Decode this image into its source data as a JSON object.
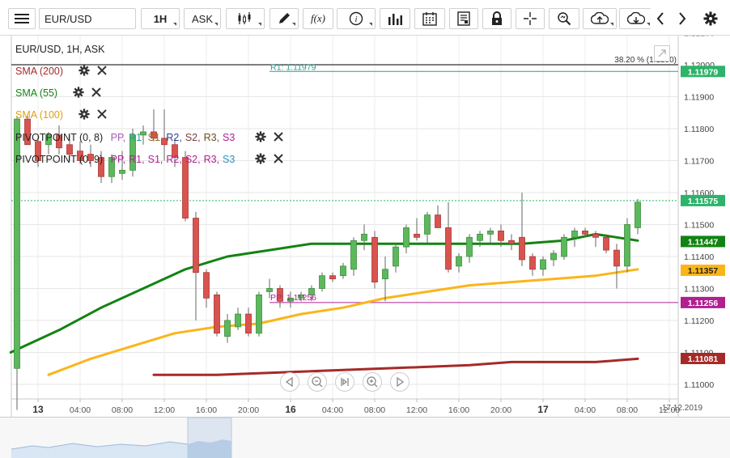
{
  "toolbar": {
    "symbol": "EUR/USD",
    "interval": "1H",
    "price_type": "ASK",
    "icons": [
      "menu-icon",
      "candle-icon",
      "draw-icon",
      "function-icon",
      "info-icon",
      "bars-icon",
      "calendar-icon",
      "notes-icon",
      "lock-icon",
      "crosshair-icon",
      "zoom-icon",
      "upload-icon",
      "download-icon",
      "chevron-left-icon",
      "chevron-right-icon",
      "gear-icon"
    ],
    "function_label": "f(x)"
  },
  "chart_title": "EUR/USD, 1H, ASK",
  "legend": {
    "sma200": {
      "label": "SMA (200)",
      "color": "#a52a2a"
    },
    "sma55": {
      "label": "SMA (55)",
      "color": "#128312"
    },
    "sma100": {
      "label": "SMA (100)",
      "color": "#fbb519"
    },
    "pivot1": {
      "label": "PIVOTPOINT (0, 8)",
      "parts": [
        {
          "t": "PP",
          "c": "#a35eb2"
        },
        {
          "t": "R1",
          "c": "#2a9d8f"
        },
        {
          "t": "S1",
          "c": "#8b6f1e"
        },
        {
          "t": "R2",
          "c": "#2c3e90"
        },
        {
          "t": "S2",
          "c": "#7a3d3d"
        },
        {
          "t": "R3",
          "c": "#6b4b1e"
        },
        {
          "t": "S3",
          "c": "#b02090"
        }
      ]
    },
    "pivot2": {
      "label": "PIVOTPOINT (0, 9)",
      "parts": [
        {
          "t": "PP",
          "c": "#b02090"
        },
        {
          "t": "R1",
          "c": "#b02090"
        },
        {
          "t": "S1",
          "c": "#b02090"
        },
        {
          "t": "R2",
          "c": "#b02090"
        },
        {
          "t": "S2",
          "c": "#b02090"
        },
        {
          "t": "R3",
          "c": "#b02090"
        },
        {
          "t": "S3",
          "c": "#2a8fbf"
        }
      ]
    }
  },
  "annotations": {
    "fib_label": "38.20 % (1.1200)",
    "r1_label": "R1: 1.11979",
    "pp_label": "PP: 1.11256"
  },
  "price_tags": [
    {
      "value": "1.11979",
      "y": 1.11979,
      "color": "#2db36a",
      "text_color": "#ffffff"
    },
    {
      "value": "1.11575",
      "y": 1.11575,
      "color": "#2db36a",
      "text_color": "#ffffff"
    },
    {
      "value": "1.11447",
      "y": 1.11447,
      "color": "#128312",
      "text_color": "#ffffff"
    },
    {
      "value": "1.11357",
      "y": 1.11357,
      "color": "#fbb519",
      "text_color": "#222222"
    },
    {
      "value": "1.11256",
      "y": 1.11256,
      "color": "#b02090",
      "text_color": "#ffffff"
    },
    {
      "value": "1.11081",
      "y": 1.11081,
      "color": "#a52a2a",
      "text_color": "#ffffff"
    }
  ],
  "date_label": "17.12.2019",
  "chart_data": {
    "type": "candlestick",
    "ylim": [
      1.1107,
      1.1213
    ],
    "yticks": [
      1.11,
      1.111,
      1.112,
      1.113,
      1.114,
      1.115,
      1.116,
      1.117,
      1.118,
      1.119,
      1.12
    ],
    "ytick_labels": [
      "1.11000",
      "1.11100",
      "1.11200",
      "1.11300",
      "1.11400",
      "1.11500",
      "1.11600",
      "1.11700",
      "1.11800",
      "1.11900",
      "1.12000"
    ],
    "top_cut_tick_label": "1.12100",
    "xticks": [
      {
        "i": 2,
        "label": "13",
        "bold": true
      },
      {
        "i": 6,
        "label": "04:00"
      },
      {
        "i": 10,
        "label": "08:00"
      },
      {
        "i": 14,
        "label": "12:00"
      },
      {
        "i": 18,
        "label": "16:00"
      },
      {
        "i": 22,
        "label": "20:00"
      },
      {
        "i": 26,
        "label": "16",
        "bold": true
      },
      {
        "i": 30,
        "label": "04:00"
      },
      {
        "i": 34,
        "label": "08:00"
      },
      {
        "i": 38,
        "label": "12:00"
      },
      {
        "i": 42,
        "label": "16:00"
      },
      {
        "i": 46,
        "label": "20:00"
      },
      {
        "i": 50,
        "label": "17",
        "bold": true
      },
      {
        "i": 54,
        "label": "04:00"
      },
      {
        "i": 58,
        "label": "08:00"
      },
      {
        "i": 62,
        "label": "12:00"
      }
    ],
    "candles": [
      [
        1.1105,
        1.1184,
        1.1092,
        1.1183
      ],
      [
        1.1183,
        1.1184,
        1.1175,
        1.1175
      ],
      [
        1.1176,
        1.1178,
        1.1168,
        1.117
      ],
      [
        1.1175,
        1.1179,
        1.1172,
        1.1178
      ],
      [
        1.1178,
        1.1181,
        1.1172,
        1.1174
      ],
      [
        1.1175,
        1.1178,
        1.117,
        1.1172
      ],
      [
        1.1173,
        1.1176,
        1.1169,
        1.117
      ],
      [
        1.1172,
        1.1175,
        1.1168,
        1.117
      ],
      [
        1.1171,
        1.1173,
        1.1163,
        1.1165
      ],
      [
        1.1165,
        1.1172,
        1.1163,
        1.1171
      ],
      [
        1.1166,
        1.1173,
        1.1164,
        1.1167
      ],
      [
        1.1167,
        1.118,
        1.1165,
        1.1178
      ],
      [
        1.1178,
        1.1181,
        1.1175,
        1.1179
      ],
      [
        1.1179,
        1.1186,
        1.1176,
        1.1177
      ],
      [
        1.1177,
        1.1186,
        1.117,
        1.1175
      ],
      [
        1.1175,
        1.1177,
        1.1168,
        1.1171
      ],
      [
        1.1171,
        1.1173,
        1.1151,
        1.1152
      ],
      [
        1.1152,
        1.1154,
        1.112,
        1.1135
      ],
      [
        1.1135,
        1.1136,
        1.1124,
        1.1127
      ],
      [
        1.1128,
        1.1129,
        1.1115,
        1.1116
      ],
      [
        1.1115,
        1.1122,
        1.1113,
        1.112
      ],
      [
        1.1118,
        1.1124,
        1.1117,
        1.1122
      ],
      [
        1.1122,
        1.1124,
        1.1115,
        1.1116
      ],
      [
        1.1116,
        1.1129,
        1.1115,
        1.1128
      ],
      [
        1.1129,
        1.1133,
        1.1127,
        1.113
      ],
      [
        1.113,
        1.1131,
        1.1124,
        1.1126
      ],
      [
        1.1126,
        1.1129,
        1.1124,
        1.1127
      ],
      [
        1.1127,
        1.1129,
        1.1126,
        1.1128
      ],
      [
        1.1128,
        1.1131,
        1.1126,
        1.113
      ],
      [
        1.113,
        1.1135,
        1.1129,
        1.1134
      ],
      [
        1.1134,
        1.1135,
        1.1132,
        1.1133
      ],
      [
        1.1134,
        1.1138,
        1.1133,
        1.1137
      ],
      [
        1.1136,
        1.1146,
        1.1134,
        1.1145
      ],
      [
        1.1145,
        1.115,
        1.1142,
        1.1147
      ],
      [
        1.1146,
        1.1148,
        1.113,
        1.1132
      ],
      [
        1.1133,
        1.114,
        1.1126,
        1.1136
      ],
      [
        1.1137,
        1.1144,
        1.1135,
        1.1143
      ],
      [
        1.1143,
        1.115,
        1.1141,
        1.1149
      ],
      [
        1.1147,
        1.1152,
        1.1145,
        1.1146
      ],
      [
        1.1147,
        1.1154,
        1.1144,
        1.1153
      ],
      [
        1.1153,
        1.1156,
        1.1149,
        1.1149
      ],
      [
        1.1149,
        1.1157,
        1.1135,
        1.1136
      ],
      [
        1.1137,
        1.1141,
        1.1135,
        1.114
      ],
      [
        1.114,
        1.1147,
        1.1138,
        1.1146
      ],
      [
        1.1145,
        1.1148,
        1.1143,
        1.1147
      ],
      [
        1.1147,
        1.1149,
        1.1144,
        1.1148
      ],
      [
        1.1148,
        1.115,
        1.1143,
        1.1145
      ],
      [
        1.1145,
        1.1147,
        1.1142,
        1.1144
      ],
      [
        1.1146,
        1.116,
        1.1137,
        1.1139
      ],
      [
        1.114,
        1.1141,
        1.1134,
        1.1136
      ],
      [
        1.1136,
        1.114,
        1.1134,
        1.1139
      ],
      [
        1.1139,
        1.1142,
        1.1137,
        1.1141
      ],
      [
        1.114,
        1.1147,
        1.1139,
        1.1146
      ],
      [
        1.1146,
        1.1149,
        1.1143,
        1.1148
      ],
      [
        1.1148,
        1.1149,
        1.1146,
        1.1147
      ],
      [
        1.1147,
        1.1148,
        1.1143,
        1.1146
      ],
      [
        1.1146,
        1.1147,
        1.1141,
        1.1142
      ],
      [
        1.1142,
        1.1144,
        1.113,
        1.1137
      ],
      [
        1.1137,
        1.1152,
        1.1135,
        1.115
      ],
      [
        1.1149,
        1.1158,
        1.1147,
        1.1157
      ]
    ],
    "sma55": [
      [
        0,
        1.111
      ],
      [
        4,
        1.1117
      ],
      [
        8,
        1.1124
      ],
      [
        12,
        1.113
      ],
      [
        16,
        1.1136
      ],
      [
        20,
        1.114
      ],
      [
        24,
        1.1142
      ],
      [
        28,
        1.1144
      ],
      [
        32,
        1.1144
      ],
      [
        36,
        1.1144
      ],
      [
        40,
        1.1144
      ],
      [
        44,
        1.1144
      ],
      [
        48,
        1.1144
      ],
      [
        52,
        1.1145
      ],
      [
        55,
        1.1147
      ],
      [
        57,
        1.1146
      ],
      [
        59,
        1.1145
      ]
    ],
    "sma100": [
      [
        3,
        1.1103
      ],
      [
        7,
        1.1108
      ],
      [
        11,
        1.1112
      ],
      [
        15,
        1.1116
      ],
      [
        19,
        1.1118
      ],
      [
        23,
        1.1119
      ],
      [
        27,
        1.1122
      ],
      [
        31,
        1.1124
      ],
      [
        35,
        1.1127
      ],
      [
        39,
        1.1129
      ],
      [
        43,
        1.1131
      ],
      [
        47,
        1.1132
      ],
      [
        51,
        1.1133
      ],
      [
        55,
        1.1134
      ],
      [
        59,
        1.1136
      ]
    ],
    "sma200": [
      [
        13,
        1.1103
      ],
      [
        19,
        1.1103
      ],
      [
        27,
        1.1104
      ],
      [
        35,
        1.1105
      ],
      [
        43,
        1.1106
      ],
      [
        47,
        1.1107
      ],
      [
        51,
        1.1107
      ],
      [
        55,
        1.1107
      ],
      [
        59,
        1.1108
      ]
    ],
    "levels": {
      "fib": 1.12,
      "r1": 1.11979,
      "pp": 1.11256,
      "last": 1.11575
    }
  }
}
